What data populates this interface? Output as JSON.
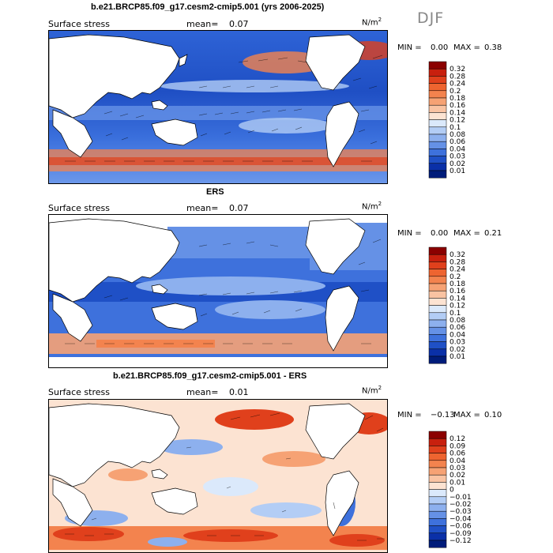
{
  "season": "DJF",
  "panels": [
    {
      "title": "b.e21.BRCP85.f09_g17.cesm2-cmip5.001 (yrs 2006-2025)",
      "variable": "Surface stress",
      "mean_label": "mean=",
      "mean_value": "0.07",
      "units_base": "N/m",
      "units_exp": "2",
      "min_label": "MIN =",
      "min_value": "0.00",
      "max_label": "MAX =",
      "max_value": "0.38"
    },
    {
      "title": "ERS",
      "variable": "Surface stress",
      "mean_label": "mean=",
      "mean_value": "0.07",
      "units_base": "N/m",
      "units_exp": "2",
      "min_label": "MIN =",
      "min_value": "0.00",
      "max_label": "MAX =",
      "max_value": "0.21"
    },
    {
      "title": "b.e21.BRCP85.f09_g17.cesm2-cmip5.001 - ERS",
      "variable": "Surface stress",
      "mean_label": "mean=",
      "mean_value": "0.01",
      "units_base": "N/m",
      "units_exp": "2",
      "min_label": "MIN =",
      "min_value": "−0.13",
      "max_label": "MAX =",
      "max_value": "0.10"
    }
  ],
  "colorbars": {
    "abs": {
      "labels": [
        "0.32",
        "0.28",
        "0.24",
        "0.2",
        "0.18",
        "0.16",
        "0.14",
        "0.12",
        "0.1",
        "0.08",
        "0.06",
        "0.04",
        "0.03",
        "0.02",
        "0.01"
      ],
      "colors": [
        "#8b0000",
        "#c8200e",
        "#e0401c",
        "#ee6430",
        "#f3834e",
        "#f6a274",
        "#f9c3a2",
        "#fce3d2",
        "#dbe9fb",
        "#b3cdf5",
        "#8db0ee",
        "#6591e6",
        "#3e71dc",
        "#1f50c6",
        "#0a30a8",
        "#001c7a"
      ]
    },
    "diff": {
      "labels": [
        "0.12",
        "0.09",
        "0.06",
        "0.04",
        "0.03",
        "0.02",
        "0.01",
        "0",
        "−0.01",
        "−0.02",
        "−0.03",
        "−0.04",
        "−0.06",
        "−0.09",
        "−0.12"
      ],
      "colors": [
        "#8b0000",
        "#c8200e",
        "#e0401c",
        "#ee6430",
        "#f3834e",
        "#f6a274",
        "#f9c3a2",
        "#fce3d2",
        "#dbe9fb",
        "#b3cdf5",
        "#8db0ee",
        "#6591e6",
        "#3e71dc",
        "#1f50c6",
        "#0a30a8",
        "#001c7a"
      ]
    }
  },
  "chart_data": [
    {
      "type": "heatmap",
      "title": "b.e21.BRCP85.f09_g17.cesm2-cmip5.001 (yrs 2006-2025)",
      "subtitle": "Surface stress",
      "season": "DJF",
      "units": "N/m2",
      "mean": 0.07,
      "min": 0.0,
      "max": 0.38,
      "contour_levels": [
        0.01,
        0.02,
        0.03,
        0.04,
        0.06,
        0.08,
        0.1,
        0.12,
        0.14,
        0.16,
        0.18,
        0.2,
        0.24,
        0.28,
        0.32
      ],
      "overlay": "wind stress vectors"
    },
    {
      "type": "heatmap",
      "title": "ERS",
      "subtitle": "Surface stress",
      "season": "DJF",
      "units": "N/m2",
      "mean": 0.07,
      "min": 0.0,
      "max": 0.21,
      "contour_levels": [
        0.01,
        0.02,
        0.03,
        0.04,
        0.06,
        0.08,
        0.1,
        0.12,
        0.14,
        0.16,
        0.18,
        0.2,
        0.24,
        0.28,
        0.32
      ],
      "overlay": "wind stress vectors"
    },
    {
      "type": "heatmap",
      "title": "b.e21.BRCP85.f09_g17.cesm2-cmip5.001 - ERS",
      "subtitle": "Surface stress",
      "season": "DJF",
      "units": "N/m2",
      "mean": 0.01,
      "min": -0.13,
      "max": 0.1,
      "contour_levels": [
        -0.12,
        -0.09,
        -0.06,
        -0.04,
        -0.03,
        -0.02,
        -0.01,
        0,
        0.01,
        0.02,
        0.03,
        0.04,
        0.06,
        0.09,
        0.12
      ],
      "overlay": "wind stress difference vectors"
    }
  ]
}
